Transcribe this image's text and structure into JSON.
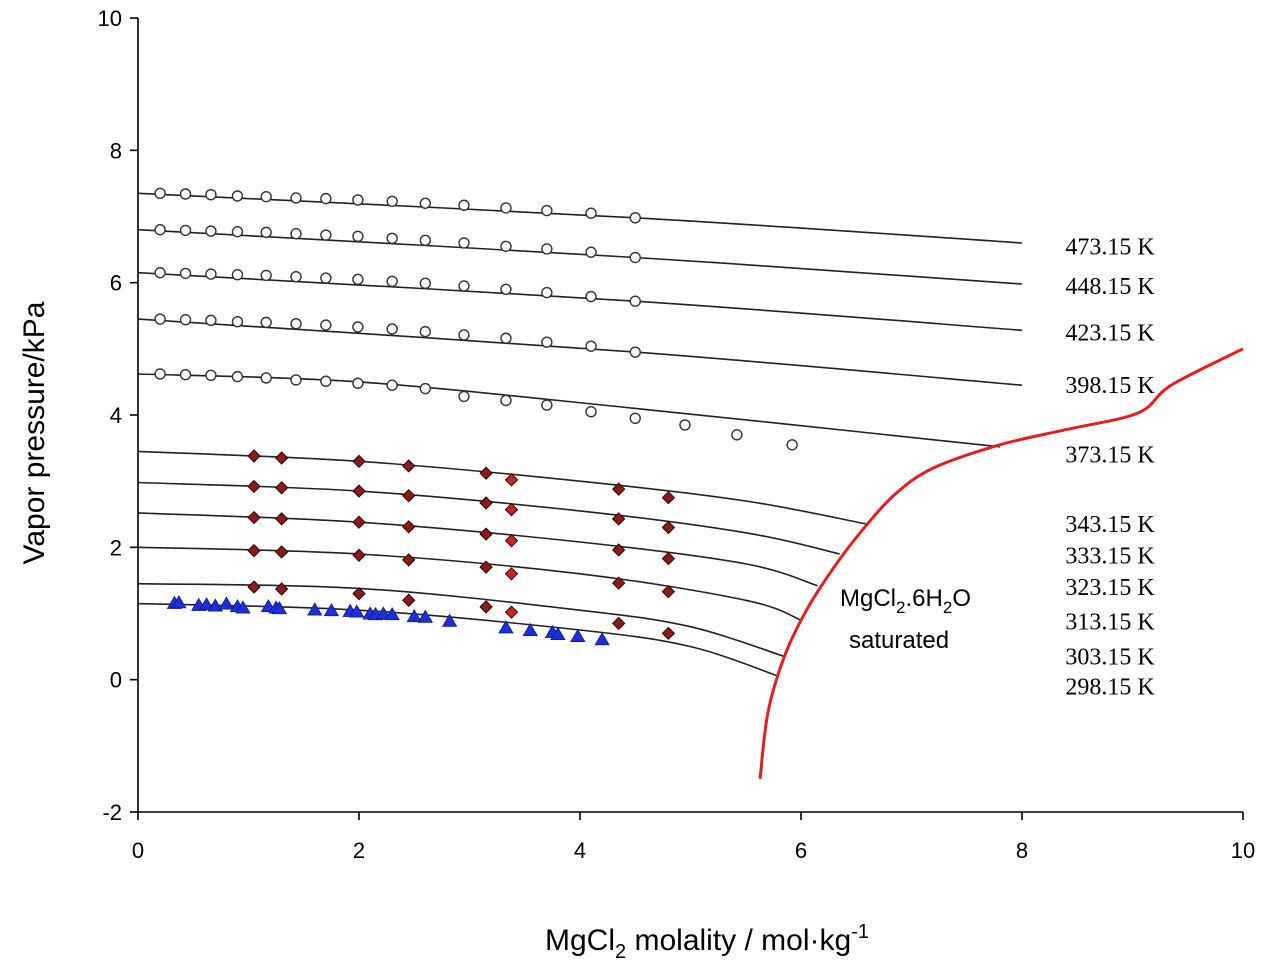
{
  "chart_data": {
    "type": "line",
    "title": "",
    "xlabel": {
      "base": "MgCl",
      "sub": "2",
      "rest": " molality / mol·kg",
      "sup": "-1"
    },
    "ylabel": "Vapor pressure/kPa",
    "xlim": [
      0,
      10
    ],
    "ylim": [
      -2,
      10
    ],
    "x_ticks": [
      "0",
      "2",
      "4",
      "6",
      "8",
      "10"
    ],
    "y_ticks": [
      "-2",
      "0",
      "2",
      "4",
      "6",
      "8",
      "10"
    ],
    "annotation": {
      "line1_base": "MgCl",
      "line1_sub": "2",
      "line1_mid": ".6H",
      "line1_sub2": "2",
      "line1_end": "O",
      "line2": "saturated"
    },
    "colors": {
      "isotherm": "#222222",
      "saturation": "#e02020",
      "diamond_fill": "#8b1a1a",
      "diamond_red": "#cc2222",
      "triangle": "#1f2fd6",
      "circle_stroke": "#333333"
    },
    "isotherms": [
      {
        "name": "473.15 K",
        "label_y": 6.55,
        "points": [
          [
            0,
            7.35
          ],
          [
            4.5,
            6.98
          ],
          [
            8.0,
            6.6
          ]
        ]
      },
      {
        "name": "448.15 K",
        "label_y": 5.95,
        "points": [
          [
            0,
            6.8
          ],
          [
            4.5,
            6.38
          ],
          [
            8.0,
            5.98
          ]
        ]
      },
      {
        "name": "423.15 K",
        "label_y": 5.25,
        "points": [
          [
            0,
            6.15
          ],
          [
            4.5,
            5.72
          ],
          [
            8.0,
            5.28
          ]
        ]
      },
      {
        "name": "398.15 K",
        "label_y": 4.45,
        "points": [
          [
            0,
            5.45
          ],
          [
            4.5,
            4.95
          ],
          [
            8.0,
            4.45
          ]
        ]
      },
      {
        "name": "373.15 K",
        "label_y": 3.4,
        "points": [
          [
            0,
            4.62
          ],
          [
            2.0,
            4.5
          ],
          [
            4.5,
            4.1
          ],
          [
            7.8,
            3.52
          ]
        ]
      },
      {
        "name": "343.15 K",
        "label_y": 2.35,
        "points": [
          [
            0,
            3.45
          ],
          [
            2.0,
            3.3
          ],
          [
            4.0,
            3.0
          ],
          [
            5.5,
            2.7
          ],
          [
            6.6,
            2.35
          ]
        ]
      },
      {
        "name": "333.15 K",
        "label_y": 1.88,
        "points": [
          [
            0,
            2.98
          ],
          [
            2.0,
            2.85
          ],
          [
            4.0,
            2.55
          ],
          [
            5.5,
            2.22
          ],
          [
            6.35,
            1.9
          ]
        ]
      },
      {
        "name": "323.15 K",
        "label_y": 1.4,
        "points": [
          [
            0,
            2.52
          ],
          [
            2.0,
            2.38
          ],
          [
            4.0,
            2.08
          ],
          [
            5.5,
            1.75
          ],
          [
            6.15,
            1.42
          ]
        ]
      },
      {
        "name": "313.15 K",
        "label_y": 0.88,
        "points": [
          [
            0,
            2.0
          ],
          [
            2.0,
            1.9
          ],
          [
            4.0,
            1.6
          ],
          [
            5.5,
            1.2
          ],
          [
            6.0,
            0.9
          ]
        ]
      },
      {
        "name": "303.15 K",
        "label_y": 0.35,
        "points": [
          [
            0,
            1.45
          ],
          [
            2.0,
            1.38
          ],
          [
            4.0,
            1.05
          ],
          [
            5.0,
            0.8
          ],
          [
            5.85,
            0.35
          ]
        ]
      },
      {
        "name": "298.15 K",
        "label_y": -0.1,
        "points": [
          [
            0,
            1.15
          ],
          [
            2.0,
            1.05
          ],
          [
            4.0,
            0.75
          ],
          [
            5.0,
            0.5
          ],
          [
            5.8,
            0.05
          ]
        ]
      }
    ],
    "saturation_curve": {
      "name": "MgCl2.6H2O saturated",
      "points": [
        [
          5.63,
          -1.5
        ],
        [
          5.7,
          -0.5
        ],
        [
          5.85,
          0.35
        ],
        [
          6.05,
          1.05
        ],
        [
          6.3,
          1.7
        ],
        [
          6.55,
          2.25
        ],
        [
          6.85,
          2.8
        ],
        [
          7.2,
          3.2
        ],
        [
          7.8,
          3.55
        ],
        [
          8.4,
          3.78
        ],
        [
          9.05,
          4.03
        ],
        [
          9.35,
          4.45
        ],
        [
          10.0,
          5.0
        ]
      ]
    },
    "circle_series": [
      {
        "name": "473.15 K",
        "x": [
          0.2,
          0.43,
          0.66,
          0.9,
          1.16,
          1.43,
          1.7,
          1.99,
          2.3,
          2.6,
          2.95,
          3.33,
          3.7,
          4.1,
          4.5
        ],
        "y": [
          7.35,
          7.34,
          7.33,
          7.31,
          7.3,
          7.28,
          7.27,
          7.25,
          7.23,
          7.2,
          7.17,
          7.13,
          7.09,
          7.05,
          6.98
        ]
      },
      {
        "name": "448.15 K",
        "x": [
          0.2,
          0.43,
          0.66,
          0.9,
          1.16,
          1.43,
          1.7,
          1.99,
          2.3,
          2.6,
          2.95,
          3.33,
          3.7,
          4.1,
          4.5
        ],
        "y": [
          6.8,
          6.79,
          6.78,
          6.77,
          6.76,
          6.74,
          6.72,
          6.7,
          6.67,
          6.64,
          6.6,
          6.55,
          6.51,
          6.46,
          6.38
        ]
      },
      {
        "name": "423.15 K",
        "x": [
          0.2,
          0.43,
          0.66,
          0.9,
          1.16,
          1.43,
          1.7,
          1.99,
          2.3,
          2.6,
          2.95,
          3.33,
          3.7,
          4.1,
          4.5
        ],
        "y": [
          6.15,
          6.14,
          6.13,
          6.12,
          6.11,
          6.09,
          6.07,
          6.05,
          6.02,
          5.99,
          5.95,
          5.9,
          5.85,
          5.79,
          5.72
        ]
      },
      {
        "name": "398.15 K",
        "x": [
          0.2,
          0.43,
          0.66,
          0.9,
          1.16,
          1.43,
          1.7,
          1.99,
          2.3,
          2.6,
          2.95,
          3.33,
          3.7,
          4.1,
          4.5
        ],
        "y": [
          5.45,
          5.44,
          5.43,
          5.41,
          5.4,
          5.38,
          5.36,
          5.33,
          5.3,
          5.26,
          5.21,
          5.16,
          5.1,
          5.04,
          4.95
        ]
      },
      {
        "name": "373.15 K",
        "x": [
          0.2,
          0.43,
          0.66,
          0.9,
          1.16,
          1.43,
          1.7,
          1.99,
          2.3,
          2.6,
          2.95,
          3.33,
          3.7,
          4.1,
          4.5,
          4.95,
          5.42,
          5.92
        ],
        "y": [
          4.62,
          4.61,
          4.6,
          4.58,
          4.56,
          4.53,
          4.51,
          4.48,
          4.45,
          4.4,
          4.28,
          4.22,
          4.15,
          4.05,
          3.95,
          3.85,
          3.7,
          3.55
        ]
      }
    ],
    "diamond_series": [
      {
        "name": "343.15 K",
        "x": [
          1.05,
          1.3,
          2.0,
          2.45,
          3.15,
          3.38,
          4.35,
          4.8
        ],
        "y": [
          3.38,
          3.35,
          3.3,
          3.23,
          3.12,
          3.02,
          2.88,
          2.75
        ]
      },
      {
        "name": "333.15 K",
        "x": [
          1.05,
          1.3,
          2.0,
          2.45,
          3.15,
          3.38,
          4.35,
          4.8
        ],
        "y": [
          2.92,
          2.9,
          2.85,
          2.78,
          2.67,
          2.57,
          2.43,
          2.3
        ]
      },
      {
        "name": "323.15 K",
        "x": [
          1.05,
          1.3,
          2.0,
          2.45,
          3.15,
          3.38,
          4.35,
          4.8
        ],
        "y": [
          2.45,
          2.43,
          2.38,
          2.31,
          2.2,
          2.1,
          1.96,
          1.83
        ]
      },
      {
        "name": "313.15 K",
        "x": [
          1.05,
          1.3,
          2.0,
          2.45,
          3.15,
          3.38,
          4.35,
          4.8
        ],
        "y": [
          1.95,
          1.93,
          1.88,
          1.81,
          1.7,
          1.6,
          1.46,
          1.33
        ]
      },
      {
        "name": "303.15 K",
        "x": [
          1.05,
          1.3,
          2.0,
          2.45,
          3.15,
          3.38,
          4.35,
          4.8
        ],
        "y": [
          1.4,
          1.37,
          1.3,
          1.2,
          1.1,
          1.02,
          0.85,
          0.7
        ]
      }
    ],
    "red_diamond_indices": [
      5
    ],
    "triangle_series": {
      "name": "298.15 K",
      "x": [
        0.33,
        0.37,
        0.55,
        0.62,
        0.7,
        0.8,
        0.9,
        0.95,
        1.18,
        1.25,
        1.28,
        1.6,
        1.75,
        1.92,
        1.98,
        2.1,
        2.15,
        2.22,
        2.3,
        2.5,
        2.6,
        2.82,
        3.33,
        3.55,
        3.75,
        3.8,
        3.98,
        4.2
      ],
      "y": [
        1.15,
        1.16,
        1.12,
        1.13,
        1.11,
        1.14,
        1.1,
        1.08,
        1.1,
        1.08,
        1.07,
        1.05,
        1.04,
        1.03,
        1.02,
        0.99,
        0.98,
        0.99,
        0.98,
        0.95,
        0.94,
        0.88,
        0.78,
        0.74,
        0.71,
        0.68,
        0.65,
        0.6
      ]
    }
  }
}
